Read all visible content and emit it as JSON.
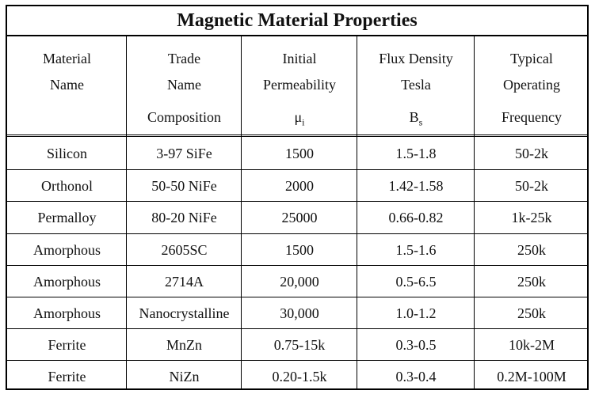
{
  "title": "Magnetic Material Properties",
  "headers": [
    [
      "Material",
      "Name",
      ""
    ],
    [
      "Trade",
      "Name",
      "Composition"
    ],
    [
      "Initial",
      "Permeability",
      "μi"
    ],
    [
      "Flux Density",
      "Tesla",
      "Bs"
    ],
    [
      "Typical",
      "Operating",
      "Frequency"
    ]
  ],
  "rows": [
    [
      "Silicon",
      "3-97 SiFe",
      "1500",
      "1.5-1.8",
      "50-2k"
    ],
    [
      "Orthonol",
      "50-50 NiFe",
      "2000",
      "1.42-1.58",
      "50-2k"
    ],
    [
      "Permalloy",
      "80-20 NiFe",
      "25000",
      "0.66-0.82",
      "1k-25k"
    ],
    [
      "Amorphous",
      "2605SC",
      "1500",
      "1.5-1.6",
      "250k"
    ],
    [
      "Amorphous",
      "2714A",
      "20,000",
      "0.5-6.5",
      "250k"
    ],
    [
      "Amorphous",
      "Nanocrystalline",
      "30,000",
      "1.0-1.2",
      "250k"
    ],
    [
      "Ferrite",
      "MnZn",
      "0.75-15k",
      "0.3-0.5",
      "10k-2M"
    ],
    [
      "Ferrite",
      "NiZn",
      "0.20-1.5k",
      "0.3-0.4",
      "0.2M-100M"
    ]
  ]
}
